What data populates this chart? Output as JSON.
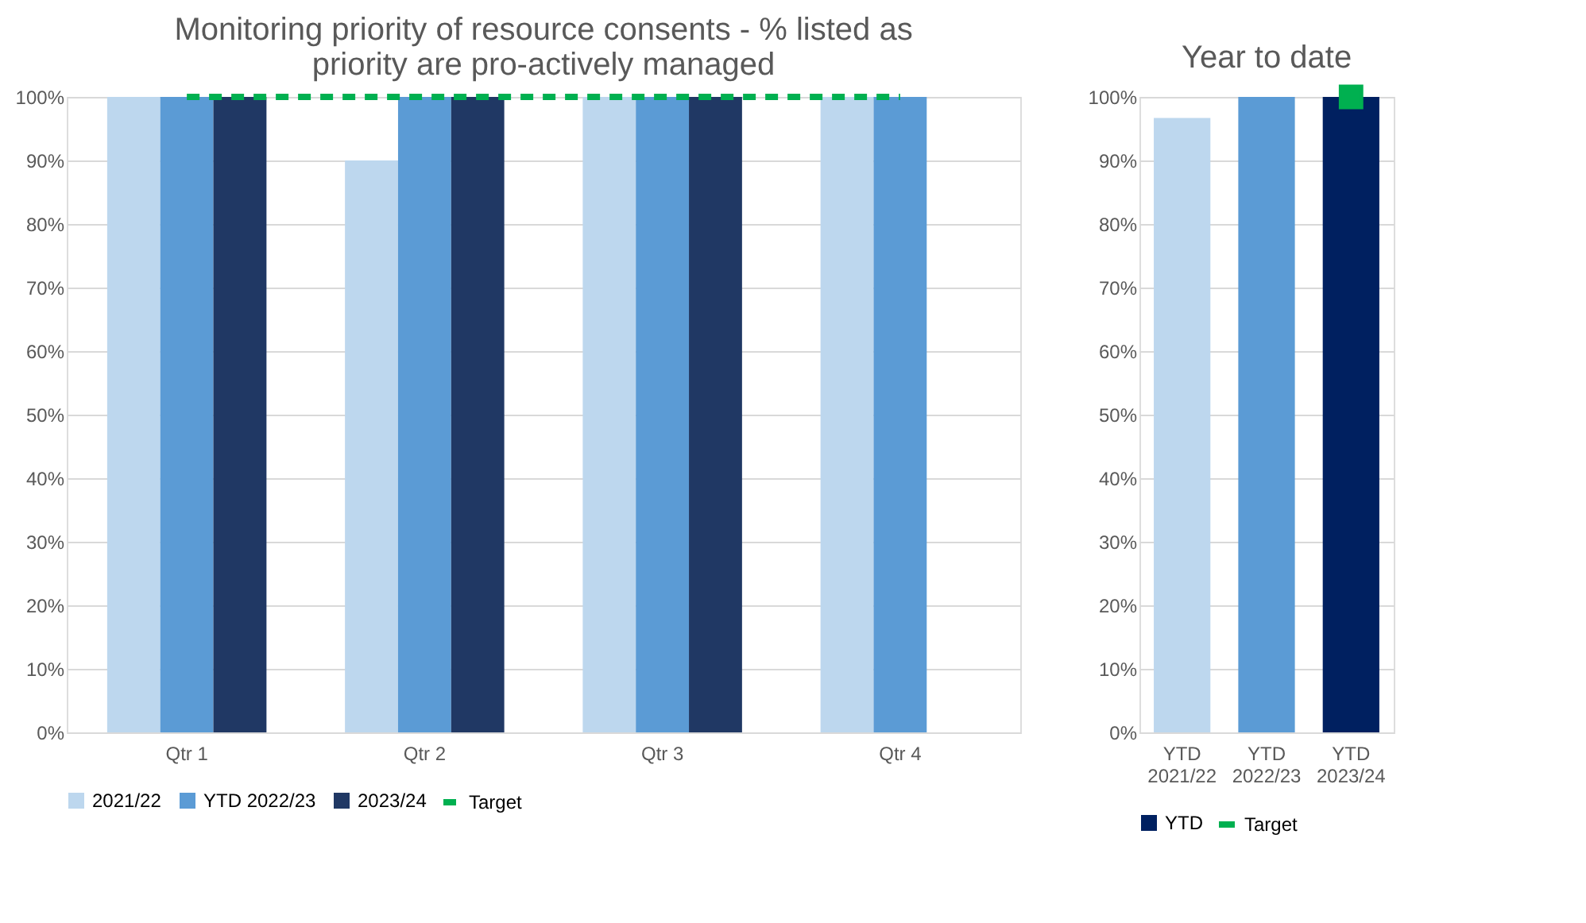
{
  "chart_data": [
    {
      "type": "bar",
      "title": "Monitoring priority of resource consents - % listed as priority are pro-actively managed",
      "categories": [
        "Qtr 1",
        "Qtr 2",
        "Qtr 3",
        "Qtr 4"
      ],
      "series": [
        {
          "name": "2021/22",
          "color": "#bdd7ee",
          "values": [
            100,
            90,
            100,
            100
          ]
        },
        {
          "name": "YTD 2022/23",
          "color": "#5b9bd5",
          "values": [
            100,
            100,
            100,
            100
          ]
        },
        {
          "name": "2023/24",
          "color": "#203864",
          "values": [
            100,
            100,
            100,
            null
          ]
        },
        {
          "name": "Target",
          "type": "line",
          "line_style": "dashed",
          "color": "#00b050",
          "values": [
            100,
            100,
            100,
            100
          ]
        }
      ],
      "ylim": [
        0,
        100
      ],
      "yticks": [
        {
          "value": 0,
          "label": "0%"
        },
        {
          "value": 10,
          "label": "10%"
        },
        {
          "value": 20,
          "label": "20%"
        },
        {
          "value": 30,
          "label": "30%"
        },
        {
          "value": 40,
          "label": "40%"
        },
        {
          "value": 50,
          "label": "50%"
        },
        {
          "value": 60,
          "label": "60%"
        },
        {
          "value": 70,
          "label": "70%"
        },
        {
          "value": 80,
          "label": "80%"
        },
        {
          "value": 90,
          "label": "90%"
        },
        {
          "value": 100,
          "label": "100%"
        }
      ],
      "grid": "y",
      "legend": "bottom"
    },
    {
      "type": "bar",
      "title": "Year to date",
      "categories": [
        "YTD 2021/22",
        "YTD 2022/23",
        "YTD 2023/24"
      ],
      "series": [
        {
          "name": "YTD",
          "color": "#002060",
          "colors": [
            "#bdd7ee",
            "#5b9bd5",
            "#002060"
          ],
          "values": [
            96.7,
            100,
            100
          ]
        },
        {
          "name": "Target",
          "type": "line",
          "line_style": "solid",
          "marker": "square",
          "color": "#00b050",
          "values": [
            null,
            null,
            100
          ]
        }
      ],
      "ylim": [
        0,
        100
      ],
      "yticks": [
        {
          "value": 0,
          "label": "0%"
        },
        {
          "value": 10,
          "label": "10%"
        },
        {
          "value": 20,
          "label": "20%"
        },
        {
          "value": 30,
          "label": "30%"
        },
        {
          "value": 40,
          "label": "40%"
        },
        {
          "value": 50,
          "label": "50%"
        },
        {
          "value": 60,
          "label": "60%"
        },
        {
          "value": 70,
          "label": "70%"
        },
        {
          "value": 80,
          "label": "80%"
        },
        {
          "value": 90,
          "label": "90%"
        },
        {
          "value": 100,
          "label": "100%"
        }
      ],
      "grid": "y",
      "legend": "bottom"
    }
  ]
}
